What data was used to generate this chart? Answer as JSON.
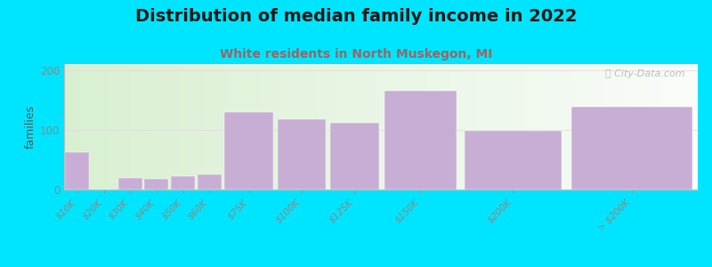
{
  "title": "Distribution of median family income in 2022",
  "subtitle": "White residents in North Muskegon, MI",
  "ylabel": "families",
  "background_color": "#00e5ff",
  "bar_color": "#c8aed4",
  "bar_edge_color": "#c8aed4",
  "categories": [
    "$10K",
    "$20K",
    "$30K",
    "$40K",
    "$50K",
    "$60K",
    "$75K",
    "$100K",
    "$125K",
    "$150K",
    "$200K",
    "> $200K"
  ],
  "values": [
    62,
    0,
    20,
    18,
    22,
    26,
    130,
    118,
    112,
    165,
    98,
    138
  ],
  "bar_lefts": [
    0,
    1,
    2,
    3,
    4,
    5,
    6,
    8,
    10,
    12,
    15,
    19
  ],
  "bar_widths": [
    1,
    1,
    1,
    1,
    1,
    1,
    2,
    2,
    2,
    3,
    4,
    5
  ],
  "ylim": [
    0,
    210
  ],
  "yticks": [
    0,
    100,
    200
  ],
  "title_fontsize": 14,
  "subtitle_fontsize": 10,
  "ylabel_fontsize": 9,
  "watermark": "ⓘ City-Data.com",
  "subtitle_color": "#996666",
  "title_color": "#1a1a1a"
}
